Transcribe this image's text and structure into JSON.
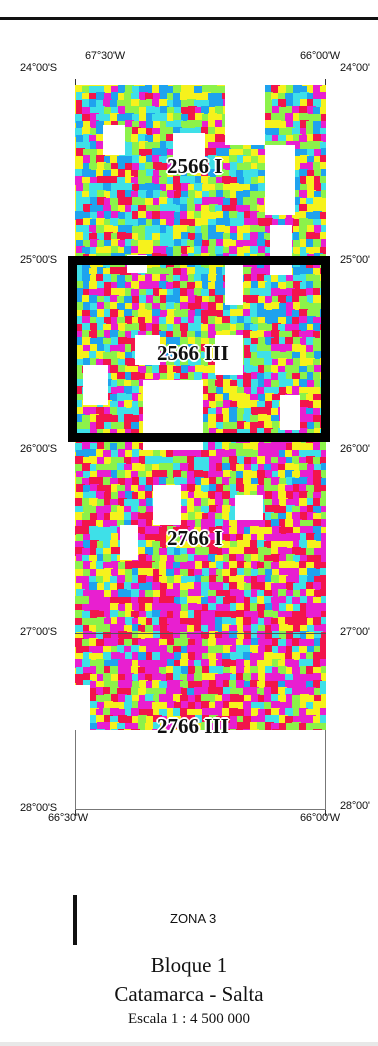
{
  "map": {
    "coords": {
      "lon_top_left": "67°30'W",
      "lon_top_right": "66°00'W",
      "lon_bottom_left": "66°30'W",
      "lon_bottom_right": "66°00'W",
      "lat_24_left": "24°00'S",
      "lat_24_right": "24°00'",
      "lat_25_left": "25°00'S",
      "lat_25_right": "25°00'",
      "lat_26_left": "26°00'S",
      "lat_26_right": "26°00'",
      "lat_27_left": "27°00'S",
      "lat_27_right": "27°00'",
      "lat_28_left": "28°00'S",
      "lat_28_right": "28°00'"
    },
    "sheets": [
      "2566 I",
      "2566 III",
      "2766 I",
      "2766 III"
    ],
    "highlighted_sheet": "2566 III",
    "colors": {
      "magenta": "#e81fd0",
      "red": "#f2154b",
      "yellow": "#f6f21c",
      "green": "#8cf24a",
      "cyan": "#3ee0e8",
      "blue": "#1fa2ee",
      "no_data": "#ffffff"
    }
  },
  "legend": {
    "label": "ZONA 3"
  },
  "caption": {
    "title": "Bloque 1",
    "region": "Catamarca - Salta",
    "scale": "Escala 1 : 4 500 000"
  }
}
